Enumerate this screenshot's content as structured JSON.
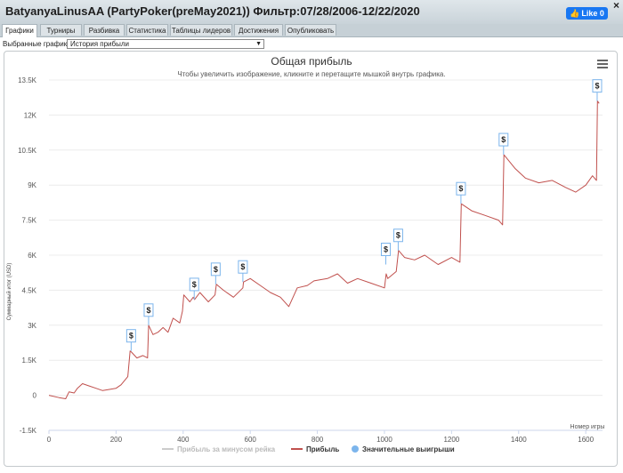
{
  "window": {
    "title": "BatyanyaLinusAA (PartyPoker(preMay2021)) Фильтр:07/28/2006-12/22/2020",
    "like_label": "Like 0",
    "close_glyph": "×"
  },
  "tabs": [
    "Графики",
    "Турниры",
    "Разбивка",
    "Статистика",
    "Таблицы лидеров",
    "Достижения",
    "Опубликовать"
  ],
  "active_tab": "Графики",
  "selector": {
    "label": "Выбранные графики:",
    "value": "История прибыли"
  },
  "chart_data": {
    "type": "line",
    "title": "Общая прибыль",
    "subtitle": "Чтобы увеличить изображение, кликните и перетащите мышкой внутрь графика.",
    "ylabel": "Суммарный итог (USD)",
    "xlabel": "Номер игры",
    "xlim": [
      0,
      1650
    ],
    "ylim": [
      -1500,
      13500
    ],
    "x_ticks": [
      0,
      200,
      400,
      600,
      800,
      1000,
      1200,
      1400,
      1600
    ],
    "y_ticks": [
      -1500,
      0,
      1500,
      3000,
      4500,
      6000,
      7500,
      9000,
      10500,
      12000,
      13500
    ],
    "y_tick_labels": [
      "-1.5K",
      "0",
      "1.5K",
      "3K",
      "4.5K",
      "6K",
      "7.5K",
      "9K",
      "10.5K",
      "12K",
      "13.5K"
    ],
    "grid": true,
    "legend_position": "bottom",
    "series": [
      {
        "name": "Прибыль за минусом рейка",
        "color": "#cccccc",
        "values": []
      },
      {
        "name": "Прибыль",
        "color": "#c0504d",
        "x": [
          0,
          30,
          50,
          60,
          75,
          85,
          100,
          120,
          140,
          160,
          180,
          200,
          215,
          235,
          242,
          246,
          262,
          280,
          294,
          297,
          310,
          325,
          340,
          355,
          370,
          390,
          398,
          402,
          420,
          430,
          434,
          450,
          475,
          495,
          499,
          520,
          550,
          578,
          580,
          600,
          630,
          660,
          690,
          715,
          740,
          770,
          790,
          830,
          860,
          890,
          920,
          960,
          1000,
          1005,
          1010,
          1035,
          1042,
          1060,
          1090,
          1120,
          1160,
          1200,
          1225,
          1229,
          1260,
          1300,
          1340,
          1352,
          1356,
          1390,
          1420,
          1460,
          1500,
          1540,
          1570,
          1600,
          1620,
          1632,
          1635,
          1640
        ],
        "y": [
          0,
          -100,
          -150,
          150,
          100,
          300,
          500,
          400,
          300,
          200,
          250,
          300,
          450,
          800,
          1900,
          1850,
          1600,
          1700,
          1600,
          3000,
          2600,
          2700,
          2900,
          2700,
          3300,
          3100,
          3600,
          4300,
          4000,
          4200,
          4100,
          4400,
          4000,
          4300,
          4750,
          4500,
          4200,
          4600,
          4850,
          5000,
          4700,
          4400,
          4200,
          3800,
          4600,
          4700,
          4900,
          5000,
          5200,
          4800,
          5000,
          4800,
          4600,
          5200,
          5000,
          5300,
          6200,
          5900,
          5800,
          6000,
          5600,
          5900,
          5700,
          8200,
          7900,
          7700,
          7500,
          7300,
          10300,
          9700,
          9300,
          9100,
          9200,
          8900,
          8700,
          9000,
          9400,
          9200,
          12600,
          12500
        ]
      },
      {
        "name": "Значительные выигрыши",
        "color": "#7cb5ec",
        "marker_label": "$",
        "x": [
          245,
          297,
          433,
          497,
          578,
          1004,
          1041,
          1228,
          1355,
          1634
        ],
        "y": [
          1900,
          3000,
          4100,
          4750,
          4850,
          5600,
          6200,
          8200,
          10300,
          12600
        ]
      }
    ]
  }
}
